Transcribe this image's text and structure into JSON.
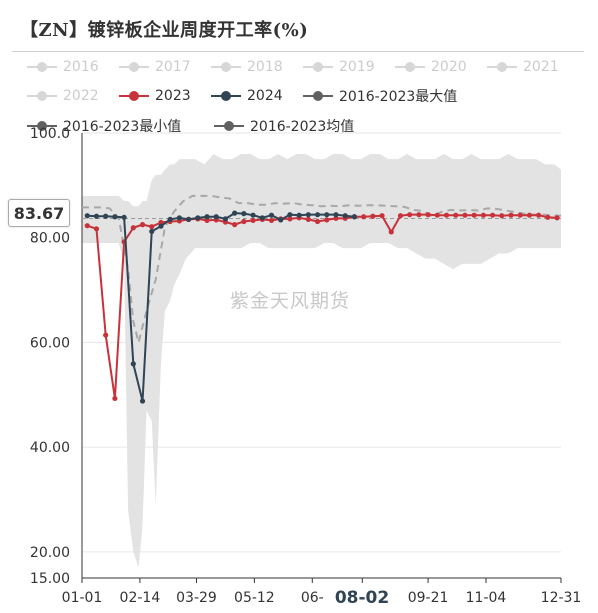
{
  "chart_data": {
    "type": "line",
    "title": "【ZN】镀锌板企业周度开工率(%)",
    "ylim": [
      15,
      100
    ],
    "y_ticks": [
      "100.0",
      "80.00",
      "60.00",
      "40.00",
      "20.00",
      "15.00"
    ],
    "y_tick_values": [
      100,
      80,
      60,
      40,
      20,
      15
    ],
    "x_ticks": [
      "01-01",
      "02-14",
      "03-29",
      "05-12",
      "06-",
      "08-02",
      "09-21",
      "11-04",
      "12-31"
    ],
    "x_tick_days": [
      1,
      45,
      88,
      132,
      176,
      214,
      264,
      308,
      365
    ],
    "highlighted_x": "08-02",
    "cursor_value": "83.67",
    "cursor_y": 83.67,
    "watermark": "紫金天风期货",
    "legend": [
      {
        "label": "2016",
        "active": false
      },
      {
        "label": "2017",
        "active": false
      },
      {
        "label": "2018",
        "active": false
      },
      {
        "label": "2019",
        "active": false
      },
      {
        "label": "2020",
        "active": false
      },
      {
        "label": "2021",
        "active": false
      },
      {
        "label": "2022",
        "active": false
      },
      {
        "label": "2023",
        "active": true,
        "color": "#c8323a"
      },
      {
        "label": "2024",
        "active": true,
        "color": "#2f4454"
      },
      {
        "label": "2016-2023最大值",
        "active": true,
        "color": "#616161"
      },
      {
        "label": "2016-2023最小值",
        "active": true,
        "color": "#616161"
      },
      {
        "label": "2016-2023均值",
        "active": true,
        "color": "#616161"
      }
    ],
    "band": {
      "x": [
        1,
        8,
        15,
        22,
        29,
        33,
        36,
        40,
        44,
        47,
        50,
        54,
        57,
        61,
        64,
        68,
        71,
        75,
        80,
        87,
        94,
        101,
        108,
        115,
        122,
        129,
        136,
        143,
        150,
        157,
        164,
        171,
        178,
        185,
        192,
        199,
        206,
        213,
        220,
        227,
        234,
        241,
        248,
        255,
        262,
        269,
        276,
        283,
        290,
        297,
        304,
        311,
        318,
        325,
        332,
        339,
        346,
        353,
        360,
        365
      ],
      "max": [
        88,
        88,
        88,
        88,
        88,
        87,
        87,
        86,
        86,
        87,
        87,
        91,
        92,
        92,
        93,
        94,
        94,
        95,
        95,
        95,
        94,
        96,
        95,
        95,
        96,
        96,
        95,
        95,
        96,
        95,
        96,
        96,
        95,
        95,
        96,
        96,
        95,
        95,
        96,
        96,
        95,
        95,
        96,
        95,
        95,
        95,
        96,
        95,
        95,
        96,
        95,
        95,
        95,
        96,
        95,
        95,
        95,
        94,
        94,
        93
      ],
      "min": [
        79,
        79,
        79,
        79,
        79,
        75,
        28,
        20,
        17,
        25,
        47,
        45,
        29,
        56,
        66,
        68,
        71,
        73,
        76,
        78,
        78,
        78,
        78,
        78,
        78,
        79,
        79,
        78,
        78,
        78,
        78,
        78,
        78,
        79,
        79,
        78,
        78,
        78,
        79,
        79,
        79,
        78,
        78,
        77,
        76,
        76,
        75,
        74,
        75,
        75,
        75,
        76,
        77,
        77,
        78,
        78,
        78,
        78,
        78,
        78
      ]
    },
    "series": [
      {
        "name": "2016-2023均值",
        "color": "#a8a8a8",
        "style": "dashed",
        "x": [
          1,
          8,
          15,
          22,
          29,
          33,
          36,
          40,
          44,
          50,
          57,
          64,
          71,
          78,
          85,
          92,
          99,
          106,
          113,
          120,
          127,
          134,
          141,
          148,
          155,
          162,
          169,
          176,
          183,
          190,
          197,
          204,
          211,
          218,
          225,
          232,
          239,
          246,
          253,
          260,
          267,
          274,
          281,
          288,
          295,
          302,
          309,
          316,
          323,
          330,
          337,
          344,
          351,
          358,
          365
        ],
        "values": [
          85.8,
          85.8,
          85.8,
          85.6,
          83.7,
          78,
          74,
          64,
          60,
          66,
          72,
          82,
          85,
          87,
          88,
          88,
          88,
          87.7,
          87.5,
          86.6,
          86.6,
          86.3,
          86.3,
          86.6,
          86.5,
          86.6,
          86.3,
          86.2,
          86,
          86.1,
          86,
          86.2,
          86.1,
          86.2,
          86.2,
          86.1,
          86,
          85.9,
          85.3,
          85.1,
          84.1,
          84.9,
          85.3,
          85.2,
          85.3,
          85.2,
          85.6,
          85.5,
          85.2,
          84.9,
          84.6,
          84.4,
          84.4,
          84.3,
          84.2
        ]
      },
      {
        "name": "2023",
        "color": "#c8323a",
        "style": "solid",
        "x": [
          5,
          12,
          19,
          26,
          33,
          40,
          47,
          54,
          61,
          68,
          75,
          82,
          89,
          96,
          103,
          110,
          117,
          124,
          131,
          138,
          145,
          152,
          159,
          166,
          173,
          180,
          187,
          194,
          201,
          208,
          215,
          222,
          229,
          236,
          243,
          250,
          257,
          264,
          271,
          278,
          285,
          292,
          299,
          306,
          313,
          320,
          327,
          334,
          341,
          348,
          355,
          362
        ],
        "values": [
          82.3,
          81.7,
          61.4,
          49.3,
          79.2,
          81.9,
          82.5,
          82.1,
          82.9,
          83.1,
          83.2,
          83.5,
          83.6,
          83.3,
          83.4,
          83,
          82.5,
          83.1,
          83.3,
          83.5,
          83.3,
          83.6,
          83.6,
          83.8,
          83.5,
          83.1,
          83.4,
          83.7,
          83.7,
          84,
          84,
          84.1,
          84.2,
          81.1,
          84.2,
          84.4,
          84.4,
          84.4,
          84.3,
          84.3,
          84.3,
          84.3,
          84.3,
          84.3,
          84.3,
          84.2,
          84.3,
          84.3,
          84.3,
          84.3,
          83.9,
          83.8
        ]
      },
      {
        "name": "2024",
        "color": "#2f4454",
        "style": "solid",
        "x": [
          5,
          12,
          19,
          26,
          33,
          40,
          47,
          54,
          61,
          68,
          75,
          82,
          89,
          96,
          103,
          110,
          117,
          124,
          131,
          138,
          145,
          152,
          159,
          166,
          173,
          180,
          187,
          194,
          201,
          208
        ],
        "values": [
          84.2,
          84.1,
          84.1,
          84,
          83.9,
          55.9,
          48.8,
          81.2,
          82.2,
          83.5,
          83.8,
          83.5,
          83.8,
          84,
          84,
          83.6,
          84.7,
          84.6,
          84.3,
          83.8,
          84.3,
          83.4,
          84.4,
          84.3,
          84.4,
          84.4,
          84.4,
          84.4,
          84.2,
          84
        ]
      }
    ]
  }
}
